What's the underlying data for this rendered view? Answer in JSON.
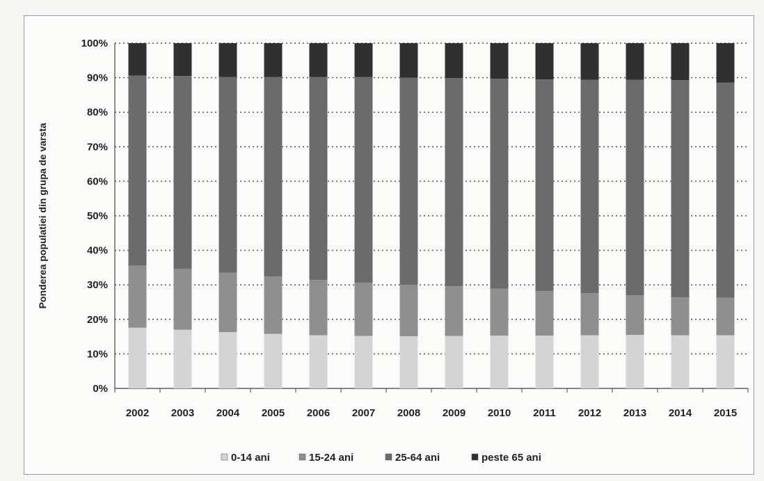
{
  "chart_data": {
    "type": "bar",
    "stacked": true,
    "ylabel": "Ponderea populatiei din grupa de varsta",
    "xlabel": "",
    "categories": [
      "2002",
      "2003",
      "2004",
      "2005",
      "2006",
      "2007",
      "2008",
      "2009",
      "2010",
      "2011",
      "2012",
      "2013",
      "2014",
      "2015"
    ],
    "ylim": [
      0,
      100
    ],
    "yticks": [
      "0%",
      "10%",
      "20%",
      "30%",
      "40%",
      "50%",
      "60%",
      "70%",
      "80%",
      "90%",
      "100%"
    ],
    "grid": true,
    "legend_position": "bottom",
    "series": [
      {
        "name": "0-14 ani",
        "color": "#d4d4d4",
        "values": [
          17.6,
          17.0,
          16.3,
          15.8,
          15.4,
          15.2,
          15.1,
          15.2,
          15.3,
          15.3,
          15.4,
          15.5,
          15.4,
          15.4
        ]
      },
      {
        "name": "15-24 ani",
        "color": "#8f8f8f",
        "values": [
          18.0,
          17.6,
          17.2,
          16.6,
          16.0,
          15.4,
          14.9,
          14.4,
          13.6,
          12.9,
          12.2,
          11.5,
          11.0,
          10.9
        ]
      },
      {
        "name": "25-64 ani",
        "color": "#6b6b6b",
        "values": [
          55.0,
          55.9,
          56.7,
          57.8,
          58.8,
          59.6,
          60.0,
          60.3,
          60.8,
          61.3,
          61.8,
          62.4,
          62.9,
          62.3
        ]
      },
      {
        "name": "peste 65 ani",
        "color": "#303030",
        "values": [
          9.4,
          9.5,
          9.8,
          9.8,
          9.8,
          9.8,
          10.0,
          10.1,
          10.3,
          10.5,
          10.6,
          10.6,
          10.7,
          11.4
        ]
      }
    ]
  }
}
